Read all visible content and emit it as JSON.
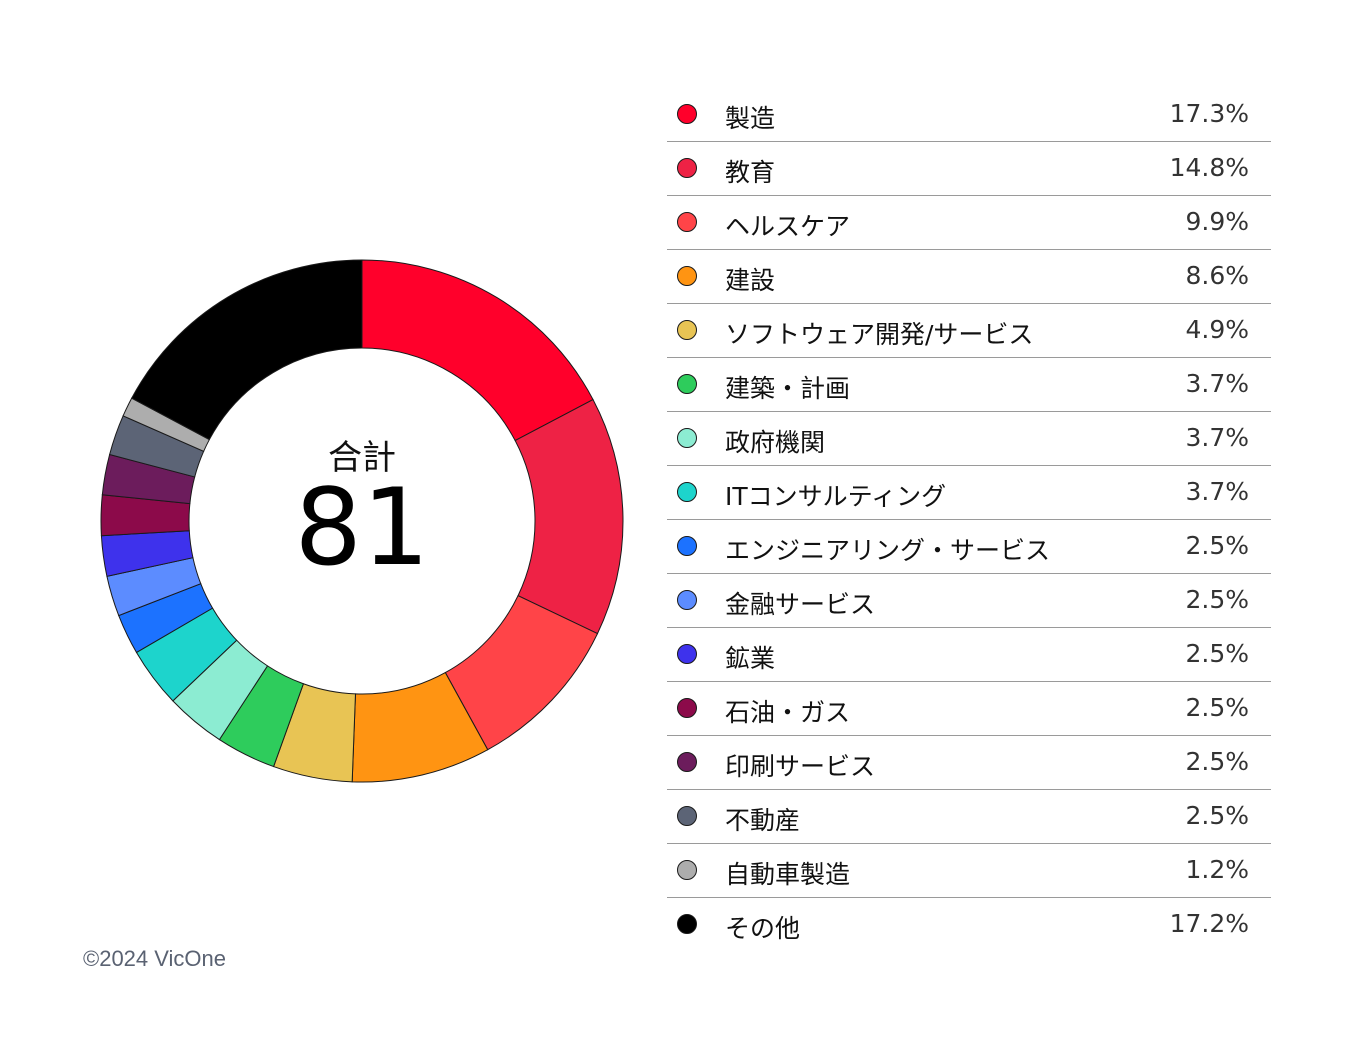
{
  "chart_data": {
    "type": "pie",
    "center_label": "合計",
    "center_value": "81",
    "slices": [
      {
        "label": "製造",
        "value": 17.3,
        "display": "17.3%",
        "color": "#FF002B"
      },
      {
        "label": "教育",
        "value": 14.8,
        "display": "14.8%",
        "color": "#EE2245"
      },
      {
        "label": "ヘルスケア",
        "value": 9.9,
        "display": "9.9%",
        "color": "#FF4448"
      },
      {
        "label": "建設",
        "value": 8.6,
        "display": "8.6%",
        "color": "#FF9412"
      },
      {
        "label": "ソフトウェア開発/サービス",
        "value": 4.9,
        "display": "4.9%",
        "color": "#E8C454"
      },
      {
        "label": "建築・計画",
        "value": 3.7,
        "display": "3.7%",
        "color": "#2ECC5C"
      },
      {
        "label": "政府機関",
        "value": 3.7,
        "display": "3.7%",
        "color": "#8CECD2"
      },
      {
        "label": "ITコンサルティング",
        "value": 3.7,
        "display": "3.7%",
        "color": "#1DD4CC"
      },
      {
        "label": "エンジニアリング・サービス",
        "value": 2.5,
        "display": "2.5%",
        "color": "#1C72FF"
      },
      {
        "label": "金融サービス",
        "value": 2.5,
        "display": "2.5%",
        "color": "#5C8CFF"
      },
      {
        "label": "鉱業",
        "value": 2.5,
        "display": "2.5%",
        "color": "#3E32EC"
      },
      {
        "label": "石油・ガス",
        "value": 2.5,
        "display": "2.5%",
        "color": "#8C0A4A"
      },
      {
        "label": "印刷サービス",
        "value": 2.5,
        "display": "2.5%",
        "color": "#6C1C5C"
      },
      {
        "label": "不動産",
        "value": 2.5,
        "display": "2.5%",
        "color": "#5C6476"
      },
      {
        "label": "自動車製造",
        "value": 1.2,
        "display": "1.2%",
        "color": "#ADADAD"
      },
      {
        "label": "その他",
        "value": 17.2,
        "display": "17.2%",
        "color": "#000000"
      }
    ]
  },
  "footer": {
    "copyright": "©2024 VicOne"
  }
}
